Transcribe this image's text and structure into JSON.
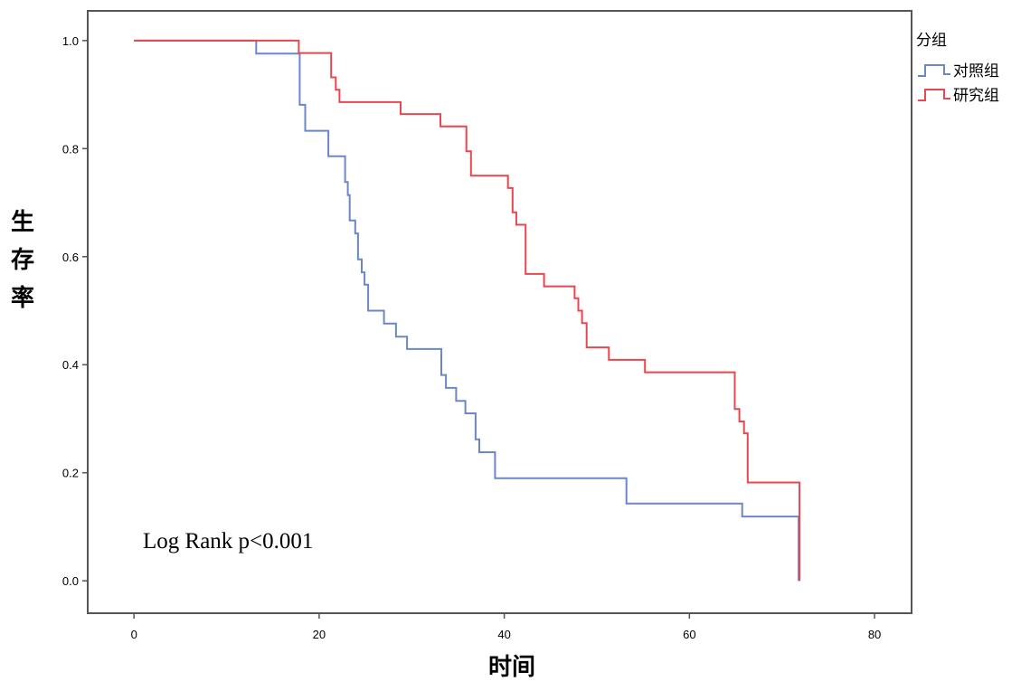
{
  "chart_data": {
    "type": "line",
    "subtype": "kaplan-meier step",
    "title": "",
    "xlabel": "时间",
    "ylabel": "生存率",
    "xlim": [
      -5,
      84
    ],
    "ylim": [
      -0.06,
      1.055
    ],
    "xticks": [
      0,
      20,
      40,
      60,
      80
    ],
    "yticks": [
      0.0,
      0.2,
      0.4,
      0.6,
      0.8,
      1.0
    ],
    "ytick_labels": [
      "0.0",
      "0.2",
      "0.4",
      "0.6",
      "0.8",
      "1.0"
    ],
    "grid": false,
    "legend": {
      "title": "分组",
      "position": "right-outside-top"
    },
    "annotation": "Log Rank p<0.001",
    "series": [
      {
        "name": "对照组",
        "color": "#6b86c9",
        "points": [
          [
            0,
            1.0
          ],
          [
            13.2,
            1.0
          ],
          [
            13.2,
            0.976
          ],
          [
            17.9,
            0.976
          ],
          [
            17.9,
            0.881
          ],
          [
            18.5,
            0.881
          ],
          [
            18.5,
            0.833
          ],
          [
            21.0,
            0.833
          ],
          [
            21.0,
            0.786
          ],
          [
            22.8,
            0.786
          ],
          [
            22.8,
            0.738
          ],
          [
            23.1,
            0.738
          ],
          [
            23.1,
            0.714
          ],
          [
            23.3,
            0.714
          ],
          [
            23.3,
            0.667
          ],
          [
            23.9,
            0.667
          ],
          [
            23.9,
            0.643
          ],
          [
            24.2,
            0.643
          ],
          [
            24.2,
            0.595
          ],
          [
            24.6,
            0.595
          ],
          [
            24.6,
            0.571
          ],
          [
            24.9,
            0.571
          ],
          [
            24.9,
            0.548
          ],
          [
            25.3,
            0.548
          ],
          [
            25.3,
            0.5
          ],
          [
            27.0,
            0.5
          ],
          [
            27.0,
            0.476
          ],
          [
            28.3,
            0.476
          ],
          [
            28.3,
            0.452
          ],
          [
            29.5,
            0.452
          ],
          [
            29.5,
            0.429
          ],
          [
            33.2,
            0.429
          ],
          [
            33.2,
            0.381
          ],
          [
            33.7,
            0.381
          ],
          [
            33.7,
            0.357
          ],
          [
            34.8,
            0.357
          ],
          [
            34.8,
            0.333
          ],
          [
            35.8,
            0.333
          ],
          [
            35.8,
            0.31
          ],
          [
            36.9,
            0.31
          ],
          [
            36.9,
            0.262
          ],
          [
            37.3,
            0.262
          ],
          [
            37.3,
            0.238
          ],
          [
            39.0,
            0.238
          ],
          [
            39.0,
            0.19
          ],
          [
            53.2,
            0.19
          ],
          [
            53.2,
            0.143
          ],
          [
            65.7,
            0.143
          ],
          [
            65.7,
            0.119
          ],
          [
            71.8,
            0.119
          ],
          [
            71.8,
            0.0
          ]
        ]
      },
      {
        "name": "研究组",
        "color": "#e8474f",
        "points": [
          [
            0,
            1.0
          ],
          [
            17.8,
            1.0
          ],
          [
            17.8,
            0.977
          ],
          [
            21.3,
            0.977
          ],
          [
            21.3,
            0.932
          ],
          [
            21.8,
            0.932
          ],
          [
            21.8,
            0.909
          ],
          [
            22.2,
            0.909
          ],
          [
            22.2,
            0.886
          ],
          [
            28.8,
            0.886
          ],
          [
            28.8,
            0.864
          ],
          [
            33.1,
            0.864
          ],
          [
            33.1,
            0.841
          ],
          [
            35.9,
            0.841
          ],
          [
            35.9,
            0.795
          ],
          [
            36.4,
            0.795
          ],
          [
            36.4,
            0.75
          ],
          [
            40.4,
            0.75
          ],
          [
            40.4,
            0.727
          ],
          [
            40.9,
            0.727
          ],
          [
            40.9,
            0.682
          ],
          [
            41.3,
            0.682
          ],
          [
            41.3,
            0.659
          ],
          [
            42.3,
            0.659
          ],
          [
            42.3,
            0.568
          ],
          [
            44.3,
            0.568
          ],
          [
            44.3,
            0.545
          ],
          [
            47.6,
            0.545
          ],
          [
            47.6,
            0.523
          ],
          [
            48.0,
            0.523
          ],
          [
            48.0,
            0.5
          ],
          [
            48.4,
            0.5
          ],
          [
            48.4,
            0.477
          ],
          [
            48.9,
            0.477
          ],
          [
            48.9,
            0.432
          ],
          [
            51.3,
            0.432
          ],
          [
            51.3,
            0.409
          ],
          [
            55.2,
            0.409
          ],
          [
            55.2,
            0.386
          ],
          [
            64.9,
            0.386
          ],
          [
            64.9,
            0.318
          ],
          [
            65.4,
            0.318
          ],
          [
            65.4,
            0.295
          ],
          [
            65.9,
            0.295
          ],
          [
            65.9,
            0.273
          ],
          [
            66.3,
            0.273
          ],
          [
            66.3,
            0.182
          ],
          [
            71.9,
            0.182
          ],
          [
            71.9,
            0.0
          ]
        ]
      }
    ]
  }
}
